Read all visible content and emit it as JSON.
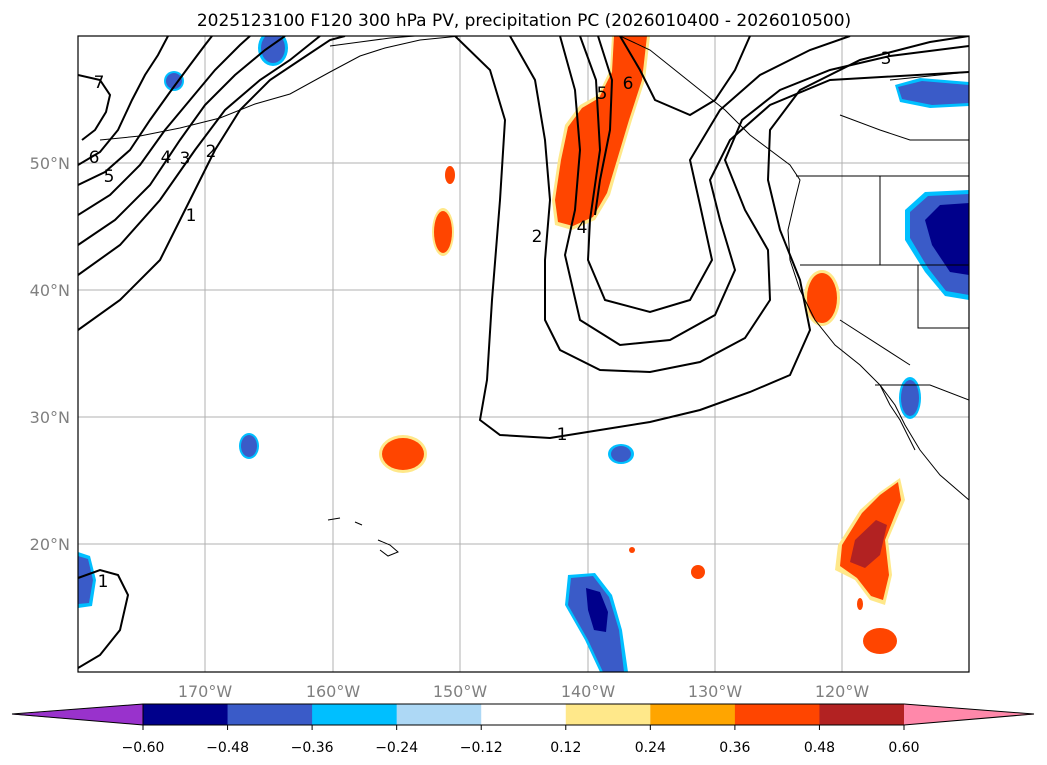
{
  "figure": {
    "title": "2025123100 F120 300 hPa PV, precipitation PC (2026010400 - 2026010500)"
  },
  "map": {
    "lat_labels": [
      "50°N",
      "40°N",
      "30°N",
      "20°N"
    ],
    "lon_labels": [
      "170°W",
      "160°W",
      "150°W",
      "140°W",
      "130°W",
      "120°W"
    ],
    "pv_contour_labels": [
      "7",
      "6",
      "5",
      "4",
      "3",
      "2",
      "1",
      "2",
      "5",
      "4",
      "6",
      "1",
      "3",
      "1"
    ]
  },
  "colorbar": {
    "ticks": [
      "−0.60",
      "−0.48",
      "−0.36",
      "−0.24",
      "−0.12",
      "0.12",
      "0.24",
      "0.36",
      "0.48",
      "0.60"
    ],
    "colors": [
      "#9932cc",
      "#00008b",
      "#3a5bc8",
      "#00bfff",
      "#add8f5",
      "#ffffff",
      "#ffe88a",
      "#ffa500",
      "#ff4500",
      "#b22222",
      "#ff88aa"
    ]
  }
}
